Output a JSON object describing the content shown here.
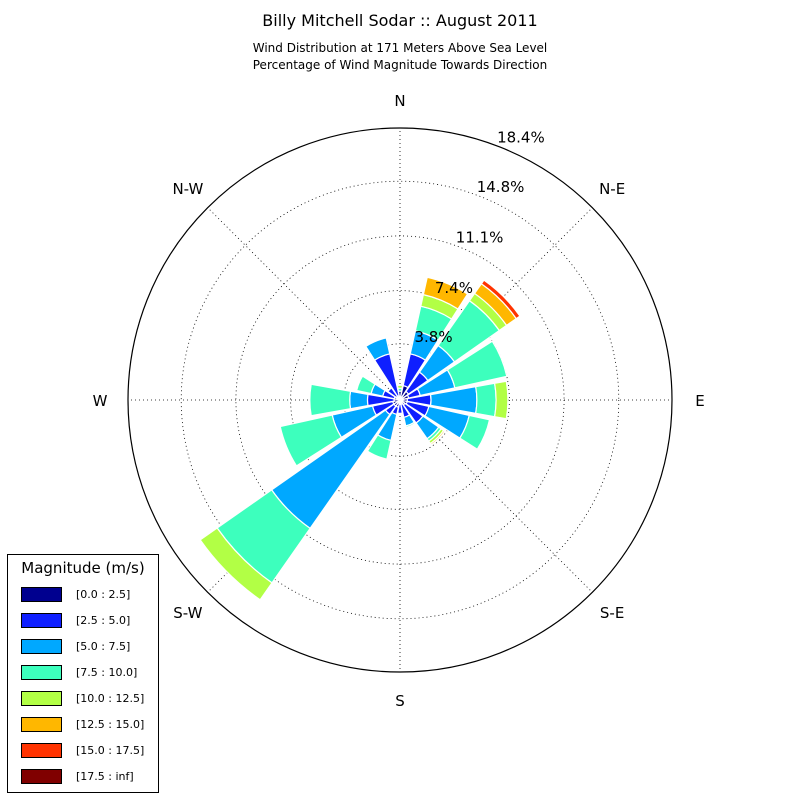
{
  "title": "Billy Mitchell Sodar :: August 2011",
  "subtitle_line1": "Wind Distribution at 171 Meters Above Sea Level",
  "subtitle_line2": "Percentage of Wind Magnitude Towards Direction",
  "legend": {
    "title": "Magnitude (m/s)",
    "items": [
      {
        "label": "[0.0 : 2.5]",
        "color": "#00008f"
      },
      {
        "label": "[2.5 : 5.0]",
        "color": "#0f1fff"
      },
      {
        "label": "[5.0 : 7.5]",
        "color": "#00a8ff"
      },
      {
        "label": "[7.5 : 10.0]",
        "color": "#3dffbd"
      },
      {
        "label": "[10.0 : 12.5]",
        "color": "#b2ff45"
      },
      {
        "label": "[12.5 : 15.0]",
        "color": "#ffb700"
      },
      {
        "label": "[15.0 : 17.5]",
        "color": "#ff3300"
      },
      {
        "label": "[17.5 : inf]",
        "color": "#800000"
      }
    ]
  },
  "chart_data": {
    "type": "windrose",
    "direction_labels": [
      "N",
      "N-E",
      "E",
      "S-E",
      "S",
      "S-W",
      "W",
      "N-W"
    ],
    "radial_ticks": [
      3.8,
      7.4,
      11.1,
      14.8,
      18.4
    ],
    "radial_tick_labels": [
      "3.8%",
      "7.4%",
      "11.1%",
      "14.8%",
      "18.4%"
    ],
    "rmax": 18.4,
    "sector_count": 16,
    "directions_deg": [
      0,
      22.5,
      45,
      67.5,
      90,
      112.5,
      135,
      157.5,
      180,
      202.5,
      225,
      247.5,
      270,
      292.5,
      315,
      337.5
    ],
    "bins": [
      "[0.0 : 2.5]",
      "[2.5 : 5.0]",
      "[5.0 : 7.5]",
      "[7.5 : 10.0]",
      "[10.0 : 12.5]",
      "[12.5 : 15.0]",
      "[15.0 : 17.5]",
      "[17.5 : inf]"
    ],
    "cumulative_percent": [
      [
        0.6,
        0.6,
        0.6,
        0.8,
        1.0,
        1.0,
        1.0,
        1.0
      ],
      [
        1.0,
        3.2,
        4.8,
        6.5,
        7.3,
        8.5,
        8.5,
        8.5
      ],
      [
        0.7,
        2.3,
        4.5,
        8.2,
        8.8,
        9.6,
        9.9,
        9.9
      ],
      [
        0.6,
        1.4,
        3.8,
        7.4,
        7.4,
        7.4,
        7.4,
        7.4
      ],
      [
        0.5,
        2.1,
        5.2,
        6.5,
        7.3,
        7.3,
        7.3,
        7.3
      ],
      [
        0.5,
        2.0,
        4.8,
        6.2,
        6.2,
        6.2,
        6.2,
        6.2
      ],
      [
        0.4,
        1.9,
        3.2,
        3.4,
        3.6,
        3.7,
        3.7,
        3.7
      ],
      [
        0.3,
        1.2,
        1.8,
        1.9,
        1.9,
        1.9,
        1.9,
        1.9
      ],
      [
        0.3,
        0.9,
        0.9,
        0.9,
        0.9,
        0.9,
        0.9,
        0.9
      ],
      [
        0.5,
        1.0,
        2.8,
        4.1,
        4.1,
        4.1,
        4.1,
        4.1
      ],
      [
        0.5,
        1.2,
        10.6,
        15.1,
        16.5,
        16.5,
        16.5,
        16.5
      ],
      [
        0.5,
        1.9,
        4.7,
        8.3,
        8.3,
        8.3,
        8.3,
        8.3
      ],
      [
        0.4,
        2.2,
        3.4,
        6.1,
        6.1,
        6.1,
        6.1,
        6.1
      ],
      [
        0.4,
        1.2,
        2.0,
        3.0,
        3.0,
        3.0,
        3.0,
        3.0
      ],
      [
        0.3,
        1.0,
        1.0,
        1.0,
        1.0,
        1.0,
        1.0,
        1.0
      ],
      [
        0.3,
        3.2,
        4.3,
        4.3,
        4.3,
        4.3,
        4.3,
        4.3
      ]
    ]
  }
}
